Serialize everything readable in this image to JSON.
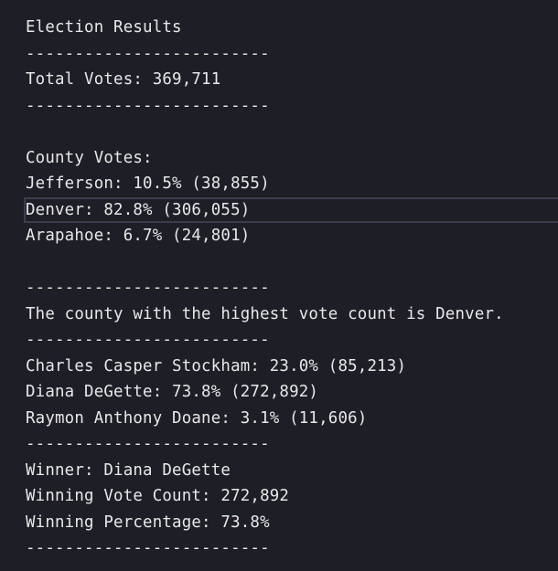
{
  "output": {
    "lines": [
      "Election Results",
      "-------------------------",
      "Total Votes: 369,711",
      "-------------------------",
      "",
      "County Votes:",
      "Jefferson: 10.5% (38,855)",
      "Denver: 82.8% (306,055)",
      "Arapahoe: 6.7% (24,801)",
      "",
      "-------------------------",
      "The county with the highest vote count is Denver.",
      "-------------------------",
      "Charles Casper Stockham: 23.0% (85,213)",
      "Diana DeGette: 73.8% (272,892)",
      "Raymon Anthony Doane: 3.1% (11,606)",
      "-------------------------",
      "Winner: Diana DeGette",
      "Winning Vote Count: 272,892",
      "Winning Percentage: 73.8%",
      "-------------------------"
    ]
  }
}
